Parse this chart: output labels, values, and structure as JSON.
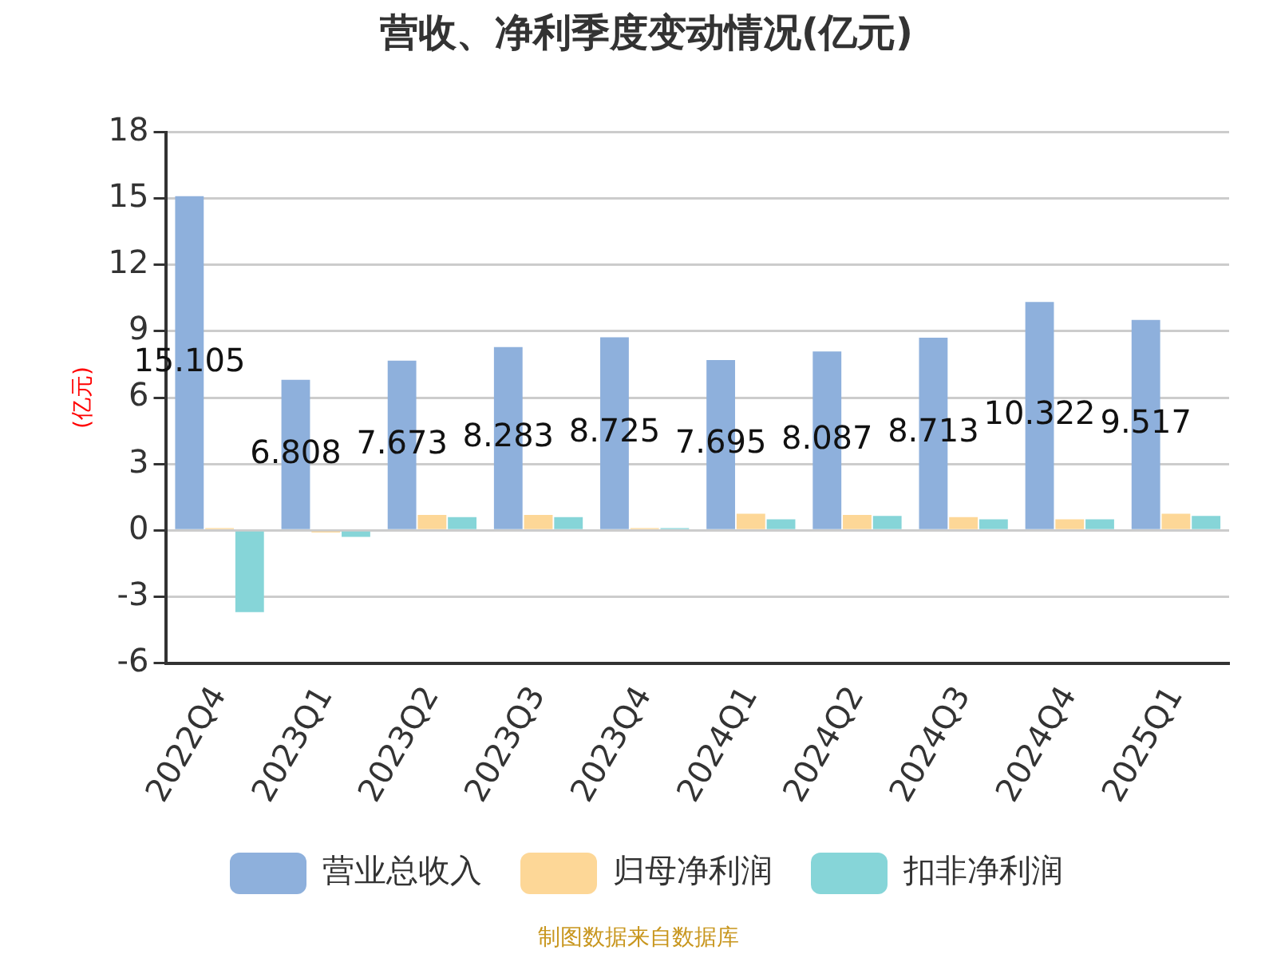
{
  "chart_data": {
    "type": "bar",
    "title": "营收、净利季度变动情况(亿元)",
    "ylabel": "(亿元)",
    "categories": [
      "2022Q4",
      "2023Q1",
      "2023Q2",
      "2023Q3",
      "2023Q4",
      "2024Q1",
      "2024Q2",
      "2024Q3",
      "2024Q4",
      "2025Q1"
    ],
    "series": [
      {
        "name": "营业总收入",
        "color": "#8eb0dc",
        "values": [
          15.105,
          6.808,
          7.673,
          8.283,
          8.725,
          7.695,
          8.087,
          8.713,
          10.322,
          9.517
        ],
        "value_labels": [
          "15.105",
          "6.808",
          "7.673",
          "8.283",
          "8.725",
          "7.695",
          "8.087",
          "8.713",
          "10.322",
          "9.517"
        ]
      },
      {
        "name": "归母净利润",
        "color": "#fdd797",
        "values": [
          0.1,
          -0.1,
          0.7,
          0.7,
          0.1,
          0.75,
          0.7,
          0.6,
          0.5,
          0.75
        ]
      },
      {
        "name": "扣非净利润",
        "color": "#86d5d8",
        "values": [
          -3.7,
          -0.3,
          0.6,
          0.6,
          0.1,
          0.5,
          0.65,
          0.5,
          0.5,
          0.65
        ]
      }
    ],
    "ylim": [
      -6,
      18
    ],
    "yticks": [
      -6,
      -3,
      0,
      3,
      6,
      9,
      12,
      15,
      18
    ],
    "grid": "y",
    "legend": "bottom",
    "annotations": [
      "制图数据来自数据库"
    ]
  }
}
